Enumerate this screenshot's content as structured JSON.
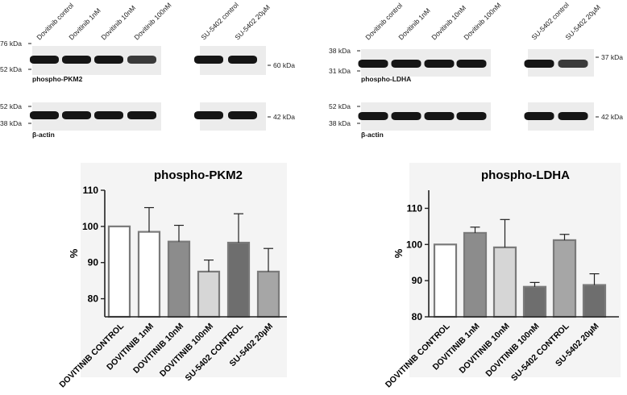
{
  "blots": [
    {
      "lanes": [
        "Dovitinib control",
        "Dovitinib 1nM",
        "Dovitinib 10nM",
        "Dovitinib 100nM",
        "SU-5402 control",
        "SU-5402 20µM"
      ],
      "rows": [
        {
          "label": "phospho-PKM2",
          "markers_left": [
            "76 kDa",
            "52 kDa"
          ],
          "marker_right": "60 kDa"
        },
        {
          "label": "β-actin",
          "markers_left": [
            "52 kDa",
            "38 kDa"
          ],
          "marker_right": "42 kDa"
        }
      ]
    },
    {
      "lanes": [
        "Dovitinib control",
        "Dovitinib 1nM",
        "Dovitinib 10nM",
        "Dovitinib 100nM",
        "SU-5402 control",
        "SU-5402 20µM"
      ],
      "rows": [
        {
          "label": "phospho-LDHA",
          "markers_left": [
            "38 kDa",
            "31 kDa"
          ],
          "marker_right": "37 kDa"
        },
        {
          "label": "β-actin",
          "markers_left": [
            "52 kDa",
            "38 kDa"
          ],
          "marker_right": "42 kDa"
        }
      ]
    }
  ],
  "chart_data": [
    {
      "type": "bar",
      "title": "phospho-PKM2",
      "ylabel": "%",
      "xlabel": "",
      "ylim": [
        75,
        110
      ],
      "yticks": [
        80,
        90,
        100,
        110
      ],
      "grid": false,
      "categories": [
        "DOVITINIB CONTROL",
        "DOVITINIB 1nM",
        "DOVITINIB 10nM",
        "DOVITINIB 100nM",
        "SU-5402 CONTROL",
        "SU-5402 20µM"
      ],
      "values": [
        100,
        98.5,
        95.8,
        87.5,
        95.5,
        87.5
      ],
      "errors": [
        0,
        6.7,
        4.5,
        3.2,
        8.0,
        6.4
      ],
      "colors": [
        "#ffffff",
        "#ffffff",
        "#8c8c8c",
        "#d6d6d6",
        "#6e6e6e",
        "#a6a6a6"
      ]
    },
    {
      "type": "bar",
      "title": "phospho-LDHA",
      "ylabel": "%",
      "xlabel": "",
      "ylim": [
        80,
        115
      ],
      "yticks": [
        80,
        90,
        100,
        110
      ],
      "grid": false,
      "categories": [
        "DOVITINIB CONTROL",
        "DOVITINIB 1nM",
        "DOVITINIB 10nM",
        "DOVITINIB 100nM",
        "SU-5402 CONTROL",
        "SU-5402 20µM"
      ],
      "values": [
        100,
        103.2,
        99.2,
        88.3,
        101.2,
        88.8
      ],
      "errors": [
        0,
        1.6,
        7.7,
        1.2,
        1.6,
        3.1
      ],
      "colors": [
        "#ffffff",
        "#8c8c8c",
        "#d6d6d6",
        "#6e6e6e",
        "#a6a6a6",
        "#6e6e6e"
      ]
    }
  ]
}
